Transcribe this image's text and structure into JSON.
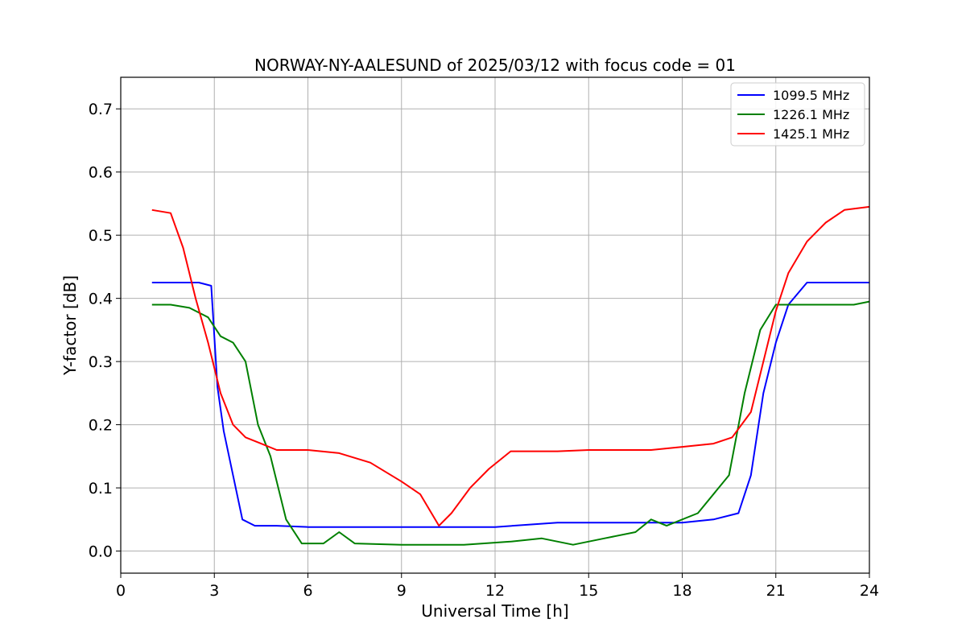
{
  "chart_data": {
    "type": "line",
    "title": "NORWAY-NY-AALESUND of 2025/03/12 with focus code = 01",
    "xlabel": "Universal Time [h]",
    "ylabel": "Y-factor [dB]",
    "xlim": [
      0,
      24
    ],
    "ylim": [
      -0.035,
      0.75
    ],
    "xticks": [
      0,
      3,
      6,
      9,
      12,
      15,
      18,
      21,
      24
    ],
    "xtick_labels": [
      "0",
      "3",
      "6",
      "9",
      "12",
      "15",
      "18",
      "21",
      "24"
    ],
    "yticks": [
      0.0,
      0.1,
      0.2,
      0.3,
      0.4,
      0.5,
      0.6,
      0.7
    ],
    "ytick_labels": [
      "0.0",
      "0.1",
      "0.2",
      "0.3",
      "0.4",
      "0.5",
      "0.6",
      "0.7"
    ],
    "grid": true,
    "legend_position": "top-right",
    "series": [
      {
        "name": "1099.5 MHz",
        "color": "#0000ff",
        "x": [
          1.0,
          1.5,
          2.0,
          2.5,
          2.9,
          3.1,
          3.3,
          3.6,
          3.9,
          4.3,
          5.0,
          6.0,
          8.0,
          10.0,
          12.0,
          14.0,
          15.0,
          16.0,
          17.0,
          18.0,
          19.0,
          19.8,
          20.2,
          20.6,
          21.0,
          21.4,
          22.0,
          23.0,
          24.0
        ],
        "y": [
          0.425,
          0.425,
          0.425,
          0.425,
          0.42,
          0.26,
          0.19,
          0.12,
          0.05,
          0.04,
          0.04,
          0.038,
          0.038,
          0.038,
          0.038,
          0.045,
          0.045,
          0.045,
          0.045,
          0.045,
          0.05,
          0.06,
          0.12,
          0.25,
          0.33,
          0.39,
          0.425,
          0.425,
          0.425
        ]
      },
      {
        "name": "1226.1 MHz",
        "color": "#008000",
        "x": [
          1.0,
          1.6,
          2.2,
          2.8,
          3.2,
          3.6,
          4.0,
          4.4,
          4.8,
          5.3,
          5.8,
          6.5,
          7.0,
          7.5,
          9.0,
          11.0,
          12.5,
          13.5,
          14.5,
          15.5,
          16.5,
          17.0,
          17.5,
          18.5,
          19.5,
          20.0,
          20.5,
          21.0,
          22.0,
          22.5,
          23.5,
          24.0
        ],
        "y": [
          0.39,
          0.39,
          0.385,
          0.37,
          0.34,
          0.33,
          0.3,
          0.2,
          0.15,
          0.05,
          0.012,
          0.012,
          0.03,
          0.012,
          0.01,
          0.01,
          0.015,
          0.02,
          0.01,
          0.02,
          0.03,
          0.05,
          0.04,
          0.06,
          0.12,
          0.25,
          0.35,
          0.39,
          0.39,
          0.39,
          0.39,
          0.395
        ]
      },
      {
        "name": "1425.1 MHz",
        "color": "#ff0000",
        "x": [
          1.0,
          1.6,
          2.0,
          2.4,
          2.8,
          3.2,
          3.6,
          4.0,
          4.5,
          5.0,
          6.0,
          7.0,
          8.0,
          9.0,
          9.6,
          10.2,
          10.6,
          11.2,
          11.8,
          12.5,
          14.0,
          15.0,
          16.0,
          17.0,
          18.0,
          19.0,
          19.6,
          20.2,
          20.6,
          21.0,
          21.4,
          22.0,
          22.6,
          23.2,
          24.0
        ],
        "y": [
          0.54,
          0.535,
          0.48,
          0.4,
          0.33,
          0.25,
          0.2,
          0.18,
          0.17,
          0.16,
          0.16,
          0.155,
          0.14,
          0.11,
          0.09,
          0.04,
          0.06,
          0.1,
          0.13,
          0.158,
          0.158,
          0.16,
          0.16,
          0.16,
          0.165,
          0.17,
          0.18,
          0.22,
          0.3,
          0.38,
          0.44,
          0.49,
          0.52,
          0.54,
          0.545
        ]
      }
    ]
  }
}
